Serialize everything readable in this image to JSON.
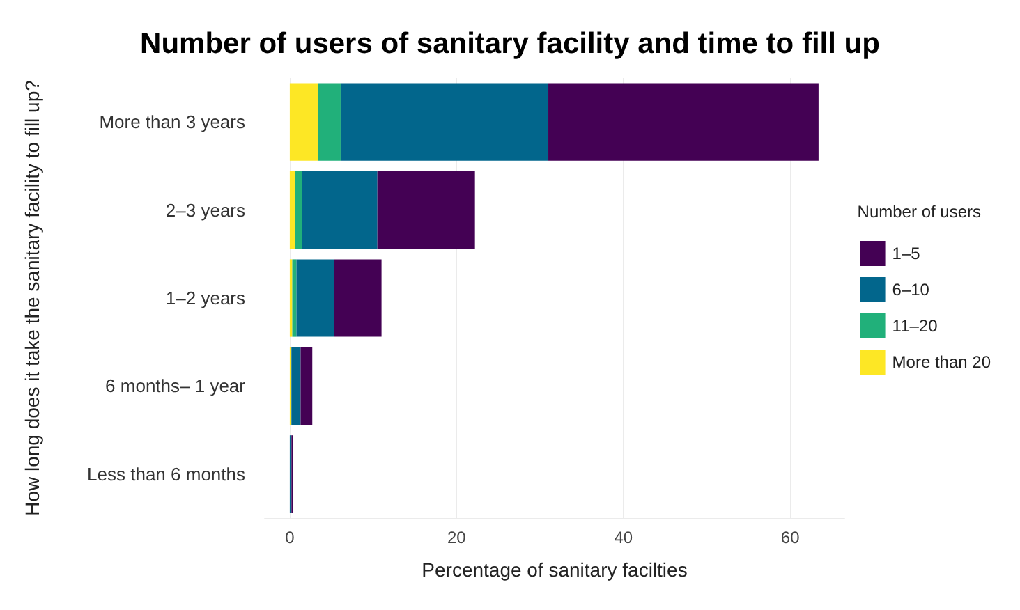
{
  "chart_data": {
    "type": "bar",
    "orientation": "horizontal",
    "stacked": true,
    "title": "Number of users of sanitary facility and time to fill up",
    "xlabel": "Percentage of sanitary facilties",
    "ylabel": "How long does it take the sanitary facility to fill up?",
    "legend_title": "Number of users",
    "categories": [
      "More than 3 years",
      "2–3 years",
      "1–2 years",
      "6 months– 1 year",
      "Less than 6 months"
    ],
    "series": [
      {
        "name": "More than 20",
        "color": "#fde725",
        "values": [
          3.4,
          0.6,
          0.3,
          0.1,
          0
        ]
      },
      {
        "name": "11–20",
        "color": "#21b07a",
        "values": [
          2.7,
          0.9,
          0.5,
          0.1,
          0
        ]
      },
      {
        "name": "6–10",
        "color": "#02668c",
        "values": [
          24.9,
          9.0,
          4.5,
          1.1,
          0.2
        ]
      },
      {
        "name": "1–5",
        "color": "#440154",
        "values": [
          32.4,
          11.7,
          5.7,
          1.4,
          0.2
        ]
      }
    ],
    "xlim": [
      -3,
      66.5
    ],
    "xticks": [
      0,
      20,
      40,
      60
    ],
    "grid": true,
    "legend": "right"
  }
}
